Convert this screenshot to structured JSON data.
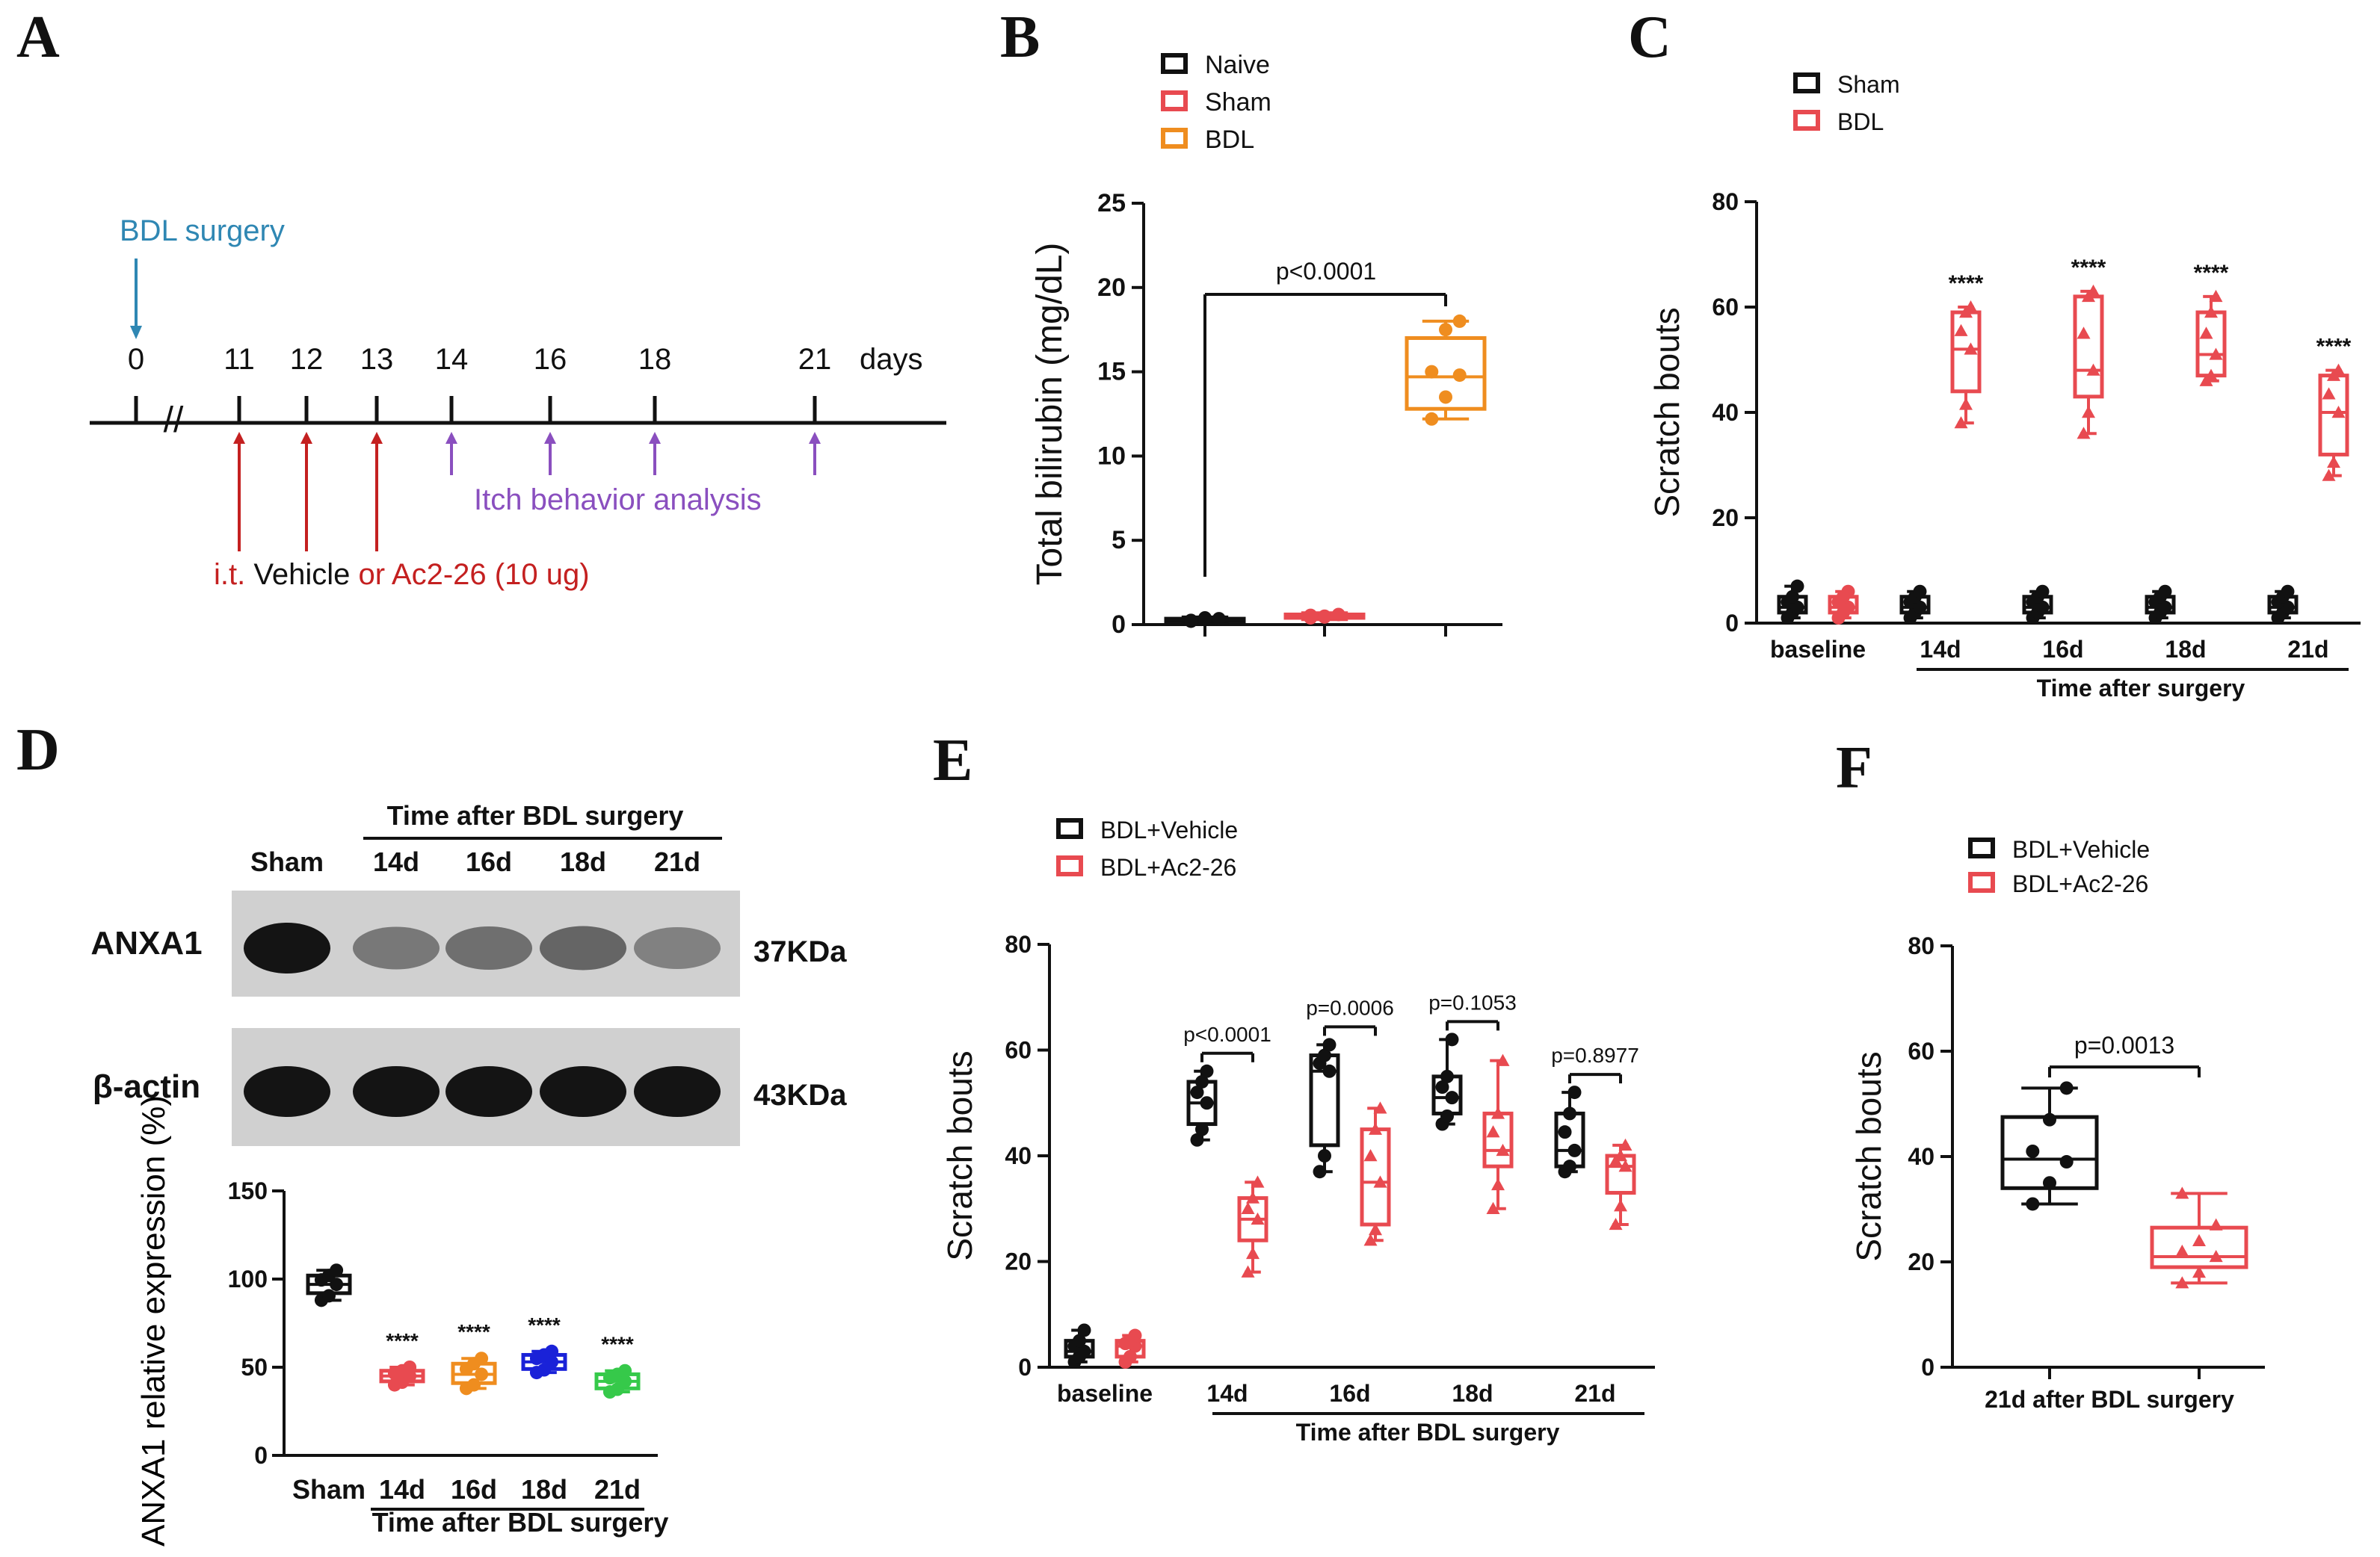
{
  "panel_letters": {
    "A": "A",
    "B": "B",
    "C": "C",
    "D": "D",
    "E": "E",
    "F": "F"
  },
  "colors": {
    "black": "#111111",
    "red": "#e84a50",
    "orange": "#ef8d1f",
    "blue": "#1a22d8",
    "green": "#36c94a",
    "teal": "#2f87b3",
    "purple": "#8a4fbf",
    "darkred": "#c42020"
  },
  "timeline": {
    "surgery_label": "BDL surgery",
    "days": [
      "0",
      "11",
      "12",
      "13",
      "14",
      "16",
      "18",
      "21"
    ],
    "days_unit": "days",
    "break_mark": "//",
    "itch_label": "Itch behavior analysis",
    "treatment_it": "i.t.",
    "treatment_vehicle": "Vehicle",
    "treatment_ac2": "or Ac2-26 (10 ug)"
  },
  "blot": {
    "header": "Time after BDL surgery",
    "lanes": [
      "Sham",
      "14d",
      "16d",
      "18d",
      "21d"
    ],
    "rows": [
      {
        "label": "ANXA1",
        "kda": "37KDa",
        "intensity": [
          1.0,
          0.45,
          0.5,
          0.55,
          0.4
        ]
      },
      {
        "label": "β-actin",
        "kda": "43KDa",
        "intensity": [
          1.0,
          1.0,
          1.0,
          1.0,
          1.0
        ]
      }
    ]
  },
  "chart_data": [
    {
      "panel": "B",
      "type": "box",
      "ylabel": "Total bilirubin (mg/dL)",
      "ylim": [
        0,
        25
      ],
      "yticks": [
        0,
        5,
        10,
        15,
        20,
        25
      ],
      "legend": [
        "Naive",
        "Sham",
        "BDL"
      ],
      "groups": [
        {
          "name": "Naive",
          "min": 0.1,
          "q1": 0.2,
          "median": 0.3,
          "q3": 0.35,
          "max": 0.45,
          "points": [
            0.2,
            0.3,
            0.35,
            0.25,
            0.4
          ]
        },
        {
          "name": "Sham",
          "min": 0.3,
          "q1": 0.4,
          "median": 0.5,
          "q3": 0.6,
          "max": 0.7,
          "points": [
            0.4,
            0.5,
            0.6,
            0.55,
            0.45
          ]
        },
        {
          "name": "BDL",
          "min": 12.2,
          "q1": 12.8,
          "median": 14.7,
          "q3": 17.0,
          "max": 18.0,
          "points": [
            12.2,
            13.5,
            14.8,
            15.0,
            17.5,
            18.0
          ]
        }
      ],
      "annotations": [
        {
          "text": "p<0.0001"
        }
      ]
    },
    {
      "panel": "C",
      "type": "box",
      "ylabel": "Scratch bouts",
      "xlabel": "Time after surgery",
      "ylim": [
        0,
        80
      ],
      "yticks": [
        0,
        20,
        40,
        60,
        80
      ],
      "categories": [
        "baseline",
        "14d",
        "16d",
        "18d",
        "21d"
      ],
      "legend": [
        "Sham",
        "BDL"
      ],
      "series": [
        {
          "name": "Sham",
          "boxes": [
            {
              "min": 1,
              "q1": 2,
              "median": 3,
              "q3": 5,
              "max": 7
            },
            {
              "min": 1,
              "q1": 2,
              "median": 3,
              "q3": 5,
              "max": 6
            },
            {
              "min": 1,
              "q1": 2,
              "median": 3,
              "q3": 5,
              "max": 6
            },
            {
              "min": 1,
              "q1": 2,
              "median": 3,
              "q3": 5,
              "max": 6
            },
            {
              "min": 1,
              "q1": 2,
              "median": 3,
              "q3": 5,
              "max": 6
            }
          ]
        },
        {
          "name": "BDL",
          "boxes": [
            {
              "min": 1,
              "q1": 2,
              "median": 3,
              "q3": 5,
              "max": 6
            },
            {
              "min": 38,
              "q1": 44,
              "median": 52,
              "q3": 59,
              "max": 60
            },
            {
              "min": 36,
              "q1": 43,
              "median": 48,
              "q3": 62,
              "max": 63
            },
            {
              "min": 46,
              "q1": 47,
              "median": 51,
              "q3": 59,
              "max": 62
            },
            {
              "min": 28,
              "q1": 32,
              "median": 40,
              "q3": 47,
              "max": 48
            }
          ]
        }
      ],
      "significance": [
        "",
        "****",
        "****",
        "****",
        "****"
      ]
    },
    {
      "panel": "D",
      "type": "box",
      "ylabel": "ANXA1 relative expression (%)",
      "xlabel": "Time after BDL surgery",
      "ylim": [
        0,
        150
      ],
      "yticks": [
        0,
        50,
        100,
        150
      ],
      "categories": [
        "Sham",
        "14d",
        "16d",
        "18d",
        "21d"
      ],
      "groups": [
        {
          "name": "Sham",
          "min": 88,
          "q1": 92,
          "median": 97,
          "q3": 102,
          "max": 105
        },
        {
          "name": "14d",
          "min": 40,
          "q1": 42,
          "median": 45,
          "q3": 48,
          "max": 50
        },
        {
          "name": "16d",
          "min": 38,
          "q1": 41,
          "median": 46,
          "q3": 52,
          "max": 55
        },
        {
          "name": "18d",
          "min": 47,
          "q1": 49,
          "median": 53,
          "q3": 57,
          "max": 59
        },
        {
          "name": "21d",
          "min": 36,
          "q1": 38,
          "median": 42,
          "q3": 46,
          "max": 48
        }
      ],
      "significance": [
        "",
        "****",
        "****",
        "****",
        "****"
      ]
    },
    {
      "panel": "E",
      "type": "box",
      "ylabel": "Scratch bouts",
      "xlabel": "Time after BDL surgery",
      "ylim": [
        0,
        80
      ],
      "yticks": [
        0,
        20,
        40,
        60,
        80
      ],
      "categories": [
        "baseline",
        "14d",
        "16d",
        "18d",
        "21d"
      ],
      "legend": [
        "BDL+Vehicle",
        "BDL+Ac2-26"
      ],
      "series": [
        {
          "name": "BDL+Vehicle",
          "boxes": [
            {
              "min": 1,
              "q1": 2,
              "median": 3,
              "q3": 5,
              "max": 7
            },
            {
              "min": 43,
              "q1": 46,
              "median": 50,
              "q3": 54,
              "max": 56
            },
            {
              "min": 37,
              "q1": 42,
              "median": 56,
              "q3": 59,
              "max": 61
            },
            {
              "min": 46,
              "q1": 48,
              "median": 51,
              "q3": 55,
              "max": 62
            },
            {
              "min": 37,
              "q1": 38,
              "median": 41,
              "q3": 48,
              "max": 52
            }
          ]
        },
        {
          "name": "BDL+Ac2-26",
          "boxes": [
            {
              "min": 1,
              "q1": 2,
              "median": 4,
              "q3": 5,
              "max": 6
            },
            {
              "min": 18,
              "q1": 24,
              "median": 28,
              "q3": 32,
              "max": 35
            },
            {
              "min": 24,
              "q1": 27,
              "median": 35,
              "q3": 45,
              "max": 49
            },
            {
              "min": 30,
              "q1": 38,
              "median": 41,
              "q3": 48,
              "max": 58
            },
            {
              "min": 27,
              "q1": 33,
              "median": 38,
              "q3": 40,
              "max": 42
            }
          ]
        }
      ],
      "pvalues": [
        "",
        "p<0.0001",
        "p=0.0006",
        "p=0.1053",
        "p=0.8977"
      ]
    },
    {
      "panel": "F",
      "type": "box",
      "ylabel": "Scratch bouts",
      "xlabel": "21d after BDL surgery",
      "ylim": [
        0,
        80
      ],
      "yticks": [
        0,
        20,
        40,
        60,
        80
      ],
      "legend": [
        "BDL+Vehicle",
        "BDL+Ac2-26"
      ],
      "groups": [
        {
          "name": "BDL+Vehicle",
          "min": 31,
          "q1": 34,
          "median": 39.5,
          "q3": 47.5,
          "max": 53,
          "points": [
            31,
            35,
            39,
            41,
            47,
            53
          ]
        },
        {
          "name": "BDL+Ac2-26",
          "min": 16,
          "q1": 19,
          "median": 21,
          "q3": 26.5,
          "max": 33,
          "points": [
            16,
            18,
            21,
            22,
            24,
            27,
            33
          ]
        }
      ],
      "annotations": [
        {
          "text": "p=0.0013"
        }
      ]
    }
  ]
}
